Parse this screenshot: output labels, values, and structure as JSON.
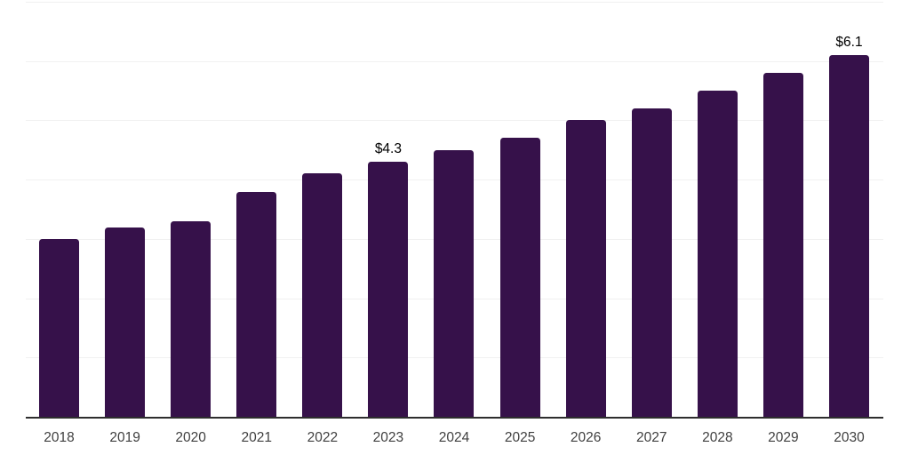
{
  "chart_data": {
    "type": "bar",
    "title": "",
    "xlabel": "",
    "ylabel": "",
    "categories": [
      "2018",
      "2019",
      "2020",
      "2021",
      "2022",
      "2023",
      "2024",
      "2025",
      "2026",
      "2027",
      "2028",
      "2029",
      "2030"
    ],
    "values": [
      3.0,
      3.2,
      3.3,
      3.8,
      4.1,
      4.3,
      4.5,
      4.7,
      5.0,
      5.2,
      5.5,
      5.8,
      6.1
    ],
    "annotations": [
      {
        "index": 5,
        "text": "$4.3"
      },
      {
        "index": 12,
        "text": "$6.1"
      }
    ],
    "ylim": [
      0,
      7
    ],
    "gridline_step": 1,
    "grid": "horizontal",
    "legend": "none",
    "colors": {
      "bar": "#36114A",
      "gridline": "#f1f1f1",
      "axis_line": "#2e2e2e",
      "tick_label": "#404040",
      "data_label": "#000000",
      "background": "#ffffff"
    }
  }
}
